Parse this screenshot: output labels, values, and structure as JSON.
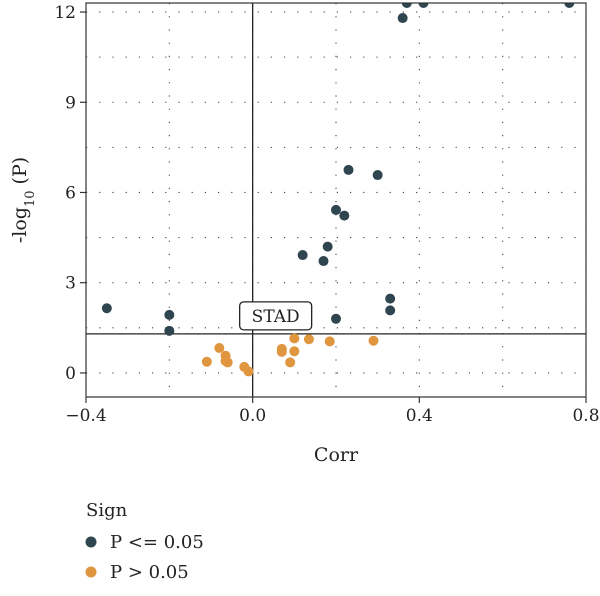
{
  "chart_data": {
    "type": "scatter",
    "title": "",
    "xlabel": "Corr",
    "ylabel": {
      "main": "-log",
      "sub": "10",
      "rest": " (P)"
    },
    "xlim": [
      -0.4,
      0.8
    ],
    "ylim": [
      -0.8,
      12.3
    ],
    "xticks": [
      -0.4,
      0.0,
      0.4,
      0.8
    ],
    "xtick_labels": [
      "−0.4",
      "0.0",
      "0.4",
      "0.8"
    ],
    "yticks": [
      0,
      3,
      6,
      9,
      12
    ],
    "ytick_labels": [
      "0",
      "3",
      "6",
      "9",
      "12"
    ],
    "grid": "dotted",
    "reference_lines": {
      "x": 0.0,
      "y": 1.3
    },
    "annotation": {
      "text": "STAD",
      "x": 0.0,
      "y": 1.3
    },
    "legend": {
      "title": "Sign",
      "position": "bottom-left",
      "entries": [
        {
          "label": "P <= 0.05",
          "color": "#2f4550"
        },
        {
          "label": "P > 0.05",
          "color": "#e0953f"
        }
      ]
    },
    "series": [
      {
        "name": "P <= 0.05",
        "color": "#2f4550",
        "points": [
          [
            -0.35,
            2.15
          ],
          [
            -0.2,
            1.93
          ],
          [
            -0.2,
            1.4
          ],
          [
            0.12,
            3.92
          ],
          [
            0.17,
            3.72
          ],
          [
            0.18,
            4.2
          ],
          [
            0.2,
            5.42
          ],
          [
            0.22,
            5.23
          ],
          [
            0.23,
            6.75
          ],
          [
            0.2,
            1.8
          ],
          [
            0.3,
            6.58
          ],
          [
            0.33,
            2.47
          ],
          [
            0.33,
            2.08
          ],
          [
            0.36,
            11.8
          ],
          [
            0.37,
            12.3
          ],
          [
            0.41,
            12.3
          ],
          [
            0.76,
            12.3
          ]
        ]
      },
      {
        "name": "P > 0.05",
        "color": "#e0953f",
        "points": [
          [
            -0.11,
            0.37
          ],
          [
            -0.08,
            0.83
          ],
          [
            -0.065,
            0.57
          ],
          [
            -0.065,
            0.4
          ],
          [
            -0.06,
            0.35
          ],
          [
            -0.02,
            0.2
          ],
          [
            -0.01,
            0.05
          ],
          [
            0.07,
            0.8
          ],
          [
            0.07,
            0.7
          ],
          [
            0.09,
            0.35
          ],
          [
            0.1,
            0.72
          ],
          [
            0.1,
            1.15
          ],
          [
            0.135,
            1.12
          ],
          [
            0.185,
            1.05
          ],
          [
            0.29,
            1.07
          ]
        ]
      }
    ]
  }
}
